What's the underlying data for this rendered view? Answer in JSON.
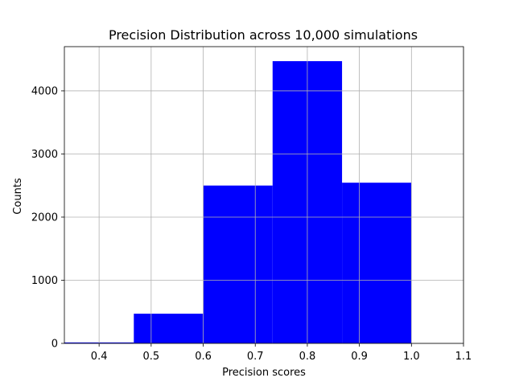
{
  "chart_data": {
    "type": "bar",
    "title": "Precision Distribution across 10,000 simulations",
    "xlabel": "Precision scores",
    "ylabel": "Counts",
    "bins": [
      {
        "x0": 0.3333,
        "x1": 0.4667,
        "count": 15
      },
      {
        "x0": 0.4667,
        "x1": 0.6,
        "count": 470
      },
      {
        "x0": 0.6,
        "x1": 0.7333,
        "count": 2500
      },
      {
        "x0": 0.7333,
        "x1": 0.8667,
        "count": 4470
      },
      {
        "x0": 0.8667,
        "x1": 1.0,
        "count": 2545
      }
    ],
    "xlim": [
      0.3333,
      1.1
    ],
    "ylim": [
      0,
      4700
    ],
    "xticks": [
      0.4,
      0.5,
      0.6,
      0.7,
      0.8,
      0.9,
      1.0,
      1.1
    ],
    "xtick_labels": [
      "0.4",
      "0.5",
      "0.6",
      "0.7",
      "0.8",
      "0.9",
      "1.0",
      "1.1"
    ],
    "yticks": [
      0,
      1000,
      2000,
      3000,
      4000
    ],
    "ytick_labels": [
      "0",
      "1000",
      "2000",
      "3000",
      "4000"
    ],
    "grid": true,
    "bar_color": "#0000ff",
    "grid_color": "#b0b0b0"
  }
}
